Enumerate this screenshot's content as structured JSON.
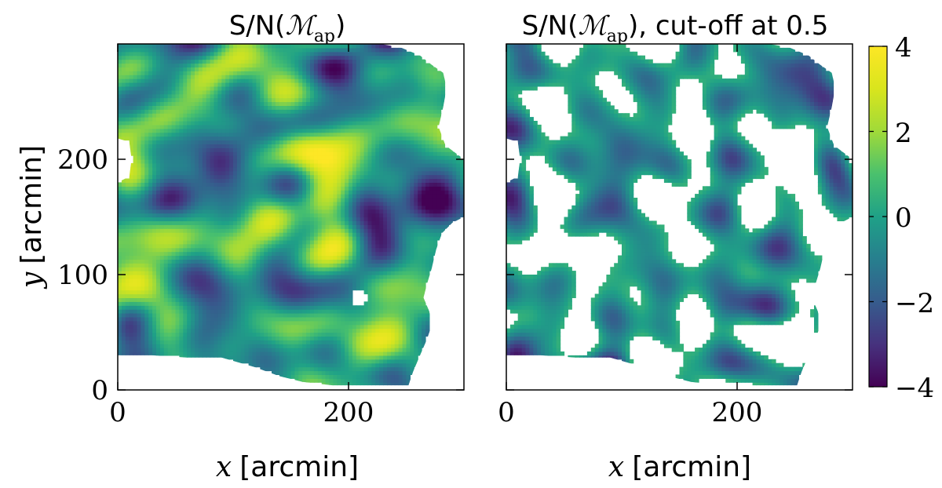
{
  "chart_data": [
    {
      "type": "heatmap",
      "title": {
        "text": "S/N(",
        "math": "ℳ",
        "sub": "ap",
        "tail": ")"
      },
      "xlabel": {
        "var": "x",
        "unit": "[arcmin]"
      },
      "ylabel": {
        "var": "y",
        "unit": "[arcmin]"
      },
      "xlim": [
        0,
        300
      ],
      "ylim": [
        0,
        300
      ],
      "xticks": [
        0,
        200
      ],
      "xtick_labels": [
        "0",
        "200"
      ],
      "yticks": [
        0,
        100,
        200
      ],
      "ytick_labels": [
        "0",
        "100",
        "200"
      ],
      "cutoff": null,
      "seed": 11
    },
    {
      "type": "heatmap",
      "title": {
        "text": "S/N(",
        "math": "ℳ",
        "sub": "ap",
        "tail": "), cut-off at 0.5"
      },
      "xlabel": {
        "var": "x",
        "unit": "[arcmin]"
      },
      "xlim": [
        0,
        300
      ],
      "ylim": [
        0,
        300
      ],
      "xticks": [
        0,
        200
      ],
      "xtick_labels": [
        "0",
        "200"
      ],
      "yticks": [
        0,
        100,
        200
      ],
      "ytick_labels": [],
      "cutoff": 0.5,
      "seed": 23
    }
  ],
  "colorbar": {
    "colormap": "viridis",
    "range": [
      -4,
      4
    ],
    "ticks": [
      4,
      2,
      0,
      -2,
      -4
    ],
    "tick_labels": [
      "4",
      "2",
      "0",
      "−2",
      "−4"
    ]
  }
}
